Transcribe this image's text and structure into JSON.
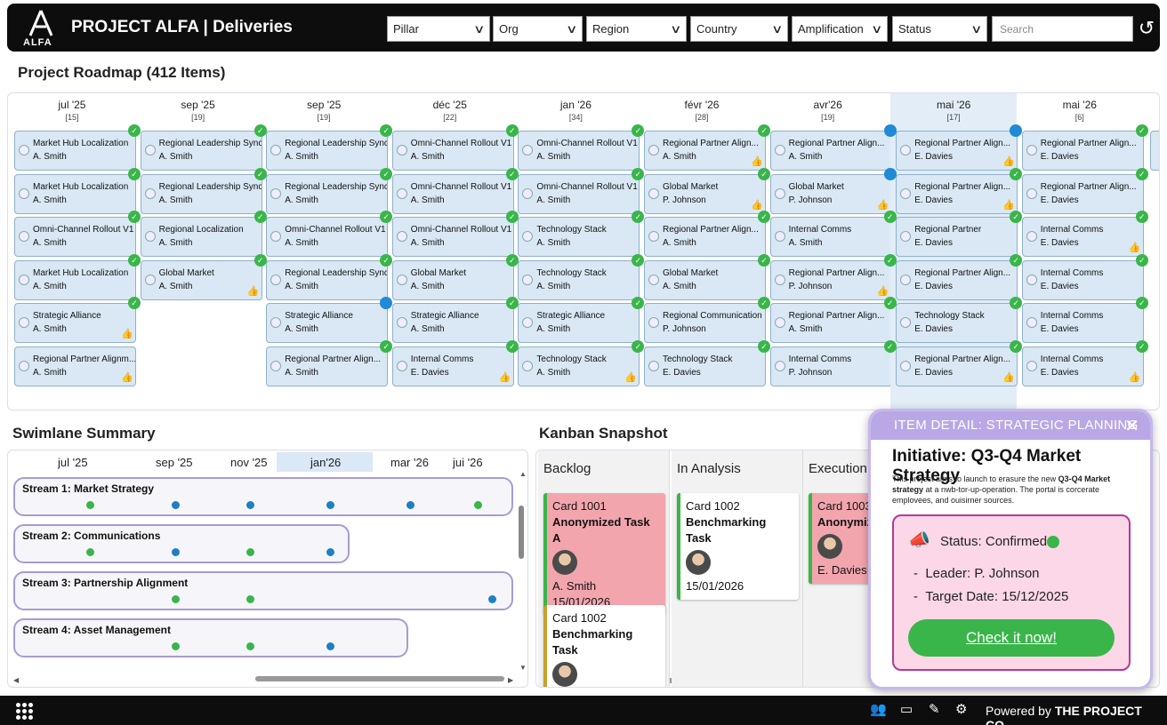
{
  "header": {
    "logo_text": "ALFA",
    "title": "PROJECT ALFA | Deliveries",
    "filters": [
      "Pillar",
      "Org",
      "Region",
      "Country",
      "Amplification",
      "Status"
    ],
    "search_placeholder": "Search"
  },
  "roadmap": {
    "title": "Project Roadmap (412 Items)",
    "columns": [
      {
        "month": "jul '25",
        "count": "[15]",
        "cards": [
          {
            "title": "Market Hub Localization",
            "owner": "A. Smith",
            "badge": "check",
            "thumb": false
          },
          {
            "title": "Market Hub Localization",
            "owner": "A. Smith",
            "badge": "check",
            "thumb": false
          },
          {
            "title": "Omni-Channel Rollout V1",
            "owner": "A. Smith",
            "badge": "check",
            "thumb": false
          },
          {
            "title": "Market Hub Localization",
            "owner": "A. Smith",
            "badge": "check",
            "thumb": false
          },
          {
            "title": "Strategic Alliance",
            "owner": "A. Smith",
            "badge": "check",
            "thumb": true
          },
          {
            "title": "Regional Partner Alignm...",
            "owner": "A. Smith",
            "badge": "",
            "thumb": true
          }
        ]
      },
      {
        "month": "sep '25",
        "count": "[19]",
        "cards": [
          {
            "title": "Regional Leadership Sync",
            "owner": "A. Smith",
            "badge": "check",
            "thumb": false
          },
          {
            "title": "Regional Leadership Sync",
            "owner": "A. Smith",
            "badge": "check",
            "thumb": false
          },
          {
            "title": "Regional Localization",
            "owner": "A. Smith",
            "badge": "check",
            "thumb": false
          },
          {
            "title": "Global Market",
            "owner": "A. Smith",
            "badge": "check",
            "thumb": true
          }
        ]
      },
      {
        "month": "sep '25",
        "count": "[19]",
        "cards": [
          {
            "title": "Regional Leadership Sync",
            "owner": "A. Smith",
            "badge": "check",
            "thumb": false
          },
          {
            "title": "Regional Leadership Sync",
            "owner": "A. Smith",
            "badge": "check",
            "thumb": false
          },
          {
            "title": "Omni-Channel Rollout V1",
            "owner": "A. Smith",
            "badge": "check",
            "thumb": false
          },
          {
            "title": "Regional Leadership Sync",
            "owner": "A. Smith",
            "badge": "check",
            "thumb": false
          },
          {
            "title": "Strategic Alliance",
            "owner": "A. Smith",
            "badge": "info",
            "thumb": false
          },
          {
            "title": "Regional Partner Align...",
            "owner": "A. Smith",
            "badge": "check",
            "thumb": false
          }
        ]
      },
      {
        "month": "déc '25",
        "count": "[22]",
        "cards": [
          {
            "title": "Omni-Channel Rollout V1",
            "owner": "A. Smith",
            "badge": "check",
            "thumb": false
          },
          {
            "title": "Omni-Channel Rollout V1",
            "owner": "A. Smith",
            "badge": "check",
            "thumb": false
          },
          {
            "title": "Omni-Channel Rollout V1",
            "owner": "A. Smith",
            "badge": "check",
            "thumb": false
          },
          {
            "title": "Global Market",
            "owner": "A. Smith",
            "badge": "check",
            "thumb": false
          },
          {
            "title": "Strategic Alliance",
            "owner": "A. Smith",
            "badge": "check",
            "thumb": false
          },
          {
            "title": "Internal Comms",
            "owner": "E. Davies",
            "badge": "check",
            "thumb": true
          }
        ]
      },
      {
        "month": "jan '26",
        "count": "[34]",
        "cards": [
          {
            "title": "Omni-Channel Rollout V1",
            "owner": "A. Smith",
            "badge": "check",
            "thumb": false
          },
          {
            "title": "Omni-Channel Rollout V1",
            "owner": "A. Smith",
            "badge": "check",
            "thumb": false
          },
          {
            "title": "Technology Stack",
            "owner": "A. Smith",
            "badge": "check",
            "thumb": false
          },
          {
            "title": "Technology Stack",
            "owner": "A. Smith",
            "badge": "check",
            "thumb": false
          },
          {
            "title": "Strategic Alliance",
            "owner": "A. Smith",
            "badge": "check",
            "thumb": false
          },
          {
            "title": "Technology Stack",
            "owner": "A. Smith",
            "badge": "check",
            "thumb": true
          }
        ]
      },
      {
        "month": "févr '26",
        "count": "[28]",
        "cards": [
          {
            "title": "Regional Partner Align...",
            "owner": "A. Smith",
            "badge": "check",
            "thumb": true
          },
          {
            "title": "Global Market",
            "owner": "P. Johnson",
            "badge": "check",
            "thumb": true
          },
          {
            "title": "Regional Partner Align...",
            "owner": "A. Smith",
            "badge": "check",
            "thumb": false
          },
          {
            "title": "Global Market",
            "owner": "A. Smith",
            "badge": "check",
            "thumb": false
          },
          {
            "title": "Regional Communication",
            "owner": "P. Johnson",
            "badge": "check",
            "thumb": false
          },
          {
            "title": "Technology Stack",
            "owner": "E. Davies",
            "badge": "check",
            "thumb": false
          }
        ]
      },
      {
        "month": "avr'26",
        "count": "[19]",
        "cards": [
          {
            "title": "Regional Partner Align...",
            "owner": "A. Smith",
            "badge": "info",
            "thumb": false
          },
          {
            "title": "Global Market",
            "owner": "P. Johnson",
            "badge": "info",
            "thumb": true
          },
          {
            "title": "Internal Comms",
            "owner": "A. Smith",
            "badge": "check",
            "thumb": false
          },
          {
            "title": "Regional Partner Align...",
            "owner": "P. Johnson",
            "badge": "check",
            "thumb": true
          },
          {
            "title": "Regional Partner Align...",
            "owner": "A. Smith",
            "badge": "check",
            "thumb": false
          },
          {
            "title": "Internal Comms",
            "owner": "P. Johnson",
            "badge": "check",
            "thumb": false
          }
        ]
      },
      {
        "month": "mai '26",
        "count": "[17]",
        "highlight": true,
        "cards": [
          {
            "title": "Regional Partner Align...",
            "owner": "E. Davies",
            "badge": "info",
            "thumb": true
          },
          {
            "title": "Regional Partner Align...",
            "owner": "E. Davies",
            "badge": "check",
            "thumb": true
          },
          {
            "title": "Regional Partner",
            "owner": "E. Davies",
            "badge": "check",
            "thumb": false
          },
          {
            "title": "Regional Partner Align...",
            "owner": "E. Davies",
            "badge": "check",
            "thumb": false
          },
          {
            "title": "Technology Stack",
            "owner": "E. Davies",
            "badge": "check",
            "thumb": false
          },
          {
            "title": "Regional Partner Align...",
            "owner": "E. Davies",
            "badge": "check",
            "thumb": true
          }
        ]
      },
      {
        "month": "mai '26",
        "count": "[6]",
        "cards": [
          {
            "title": "Regional Partner Align...",
            "owner": "E. Davies",
            "badge": "check",
            "thumb": false
          },
          {
            "title": "Regional Partner Align...",
            "owner": "E. Davies",
            "badge": "check",
            "thumb": false
          },
          {
            "title": "Internal Comms",
            "owner": "E. Davies",
            "badge": "check",
            "thumb": true
          },
          {
            "title": "Internal Comms",
            "owner": "E. Davies",
            "badge": "check",
            "thumb": false
          },
          {
            "title": "Internal Comms",
            "owner": "E. Davies",
            "badge": "check",
            "thumb": false
          },
          {
            "title": "Internal Comms",
            "owner": "E. Davies",
            "badge": "check",
            "thumb": true
          }
        ]
      }
    ]
  },
  "swimlane": {
    "title": "Swimlane Summary",
    "months": [
      "jul '25",
      "sep '25",
      "nov '25",
      "jan'26",
      "mar '26",
      "jui '26"
    ],
    "lanes": [
      {
        "name": "Stream 1: Market Strategy",
        "dots": [
          "green",
          "blue",
          "blue",
          "blue",
          "blue",
          "green"
        ]
      },
      {
        "name": "Stream 2: Communications",
        "dots": [
          "green",
          "blue",
          "green",
          "blue"
        ]
      },
      {
        "name": "Stream 3: Partnership Alignment",
        "dots": [
          "green",
          "green",
          "blue"
        ]
      },
      {
        "name": "Stream 4: Asset Management",
        "dots": [
          "green",
          "green",
          "blue"
        ]
      }
    ]
  },
  "kanban": {
    "title": "Kanban Snapshot",
    "columns": [
      {
        "name": "Backlog",
        "cards": [
          {
            "id": "Card 1001",
            "title": "Anonymized Task A",
            "owner": "A. Smith",
            "date": "15/01/2026",
            "tone": "red"
          },
          {
            "id": "Card 1002",
            "title": "Benchmarking Task",
            "owner": "",
            "date": "",
            "tone": "white-gold"
          }
        ]
      },
      {
        "name": "In Analysis",
        "cards": [
          {
            "id": "Card 1002",
            "title": "Benchmarking Task",
            "owner": "",
            "date": "15/01/2026",
            "tone": "white-green"
          }
        ]
      },
      {
        "name": "Execution",
        "cards": [
          {
            "id": "Card 1003",
            "title": "Anonymize",
            "owner": "E. Davies",
            "date": "",
            "tone": "red"
          }
        ]
      }
    ]
  },
  "detail": {
    "header": "ITEM DETAIL: STRATEGIC PLANNING",
    "title": "Initiative: Q3-Q4 Market Strategy",
    "desc_pre": "This project aims to launch to erasure the new ",
    "desc_bold": "Q3-Q4 Market strategy",
    "desc_post": " at a nwb-tor-up-operation. The portal is corcerate emplovees, and ouisirner sources.",
    "status": "Status: Confirmed",
    "leader": "Leader: P. Johnson",
    "target": "Target Date: 15/12/2025",
    "button": "Check it now!"
  },
  "footer": {
    "powered_prefix": "Powered by ",
    "powered_brand": "THE PROJECT CO."
  },
  "colors": {
    "card_blue": "#d9e8f4",
    "check_green": "#3ab54a",
    "info_blue": "#1f8ad6",
    "lane_border": "#a89bd0",
    "popup_header": "#b9a7e6",
    "popup_box": "#fbd7e7",
    "kanban_red": "#f2a5ad"
  }
}
